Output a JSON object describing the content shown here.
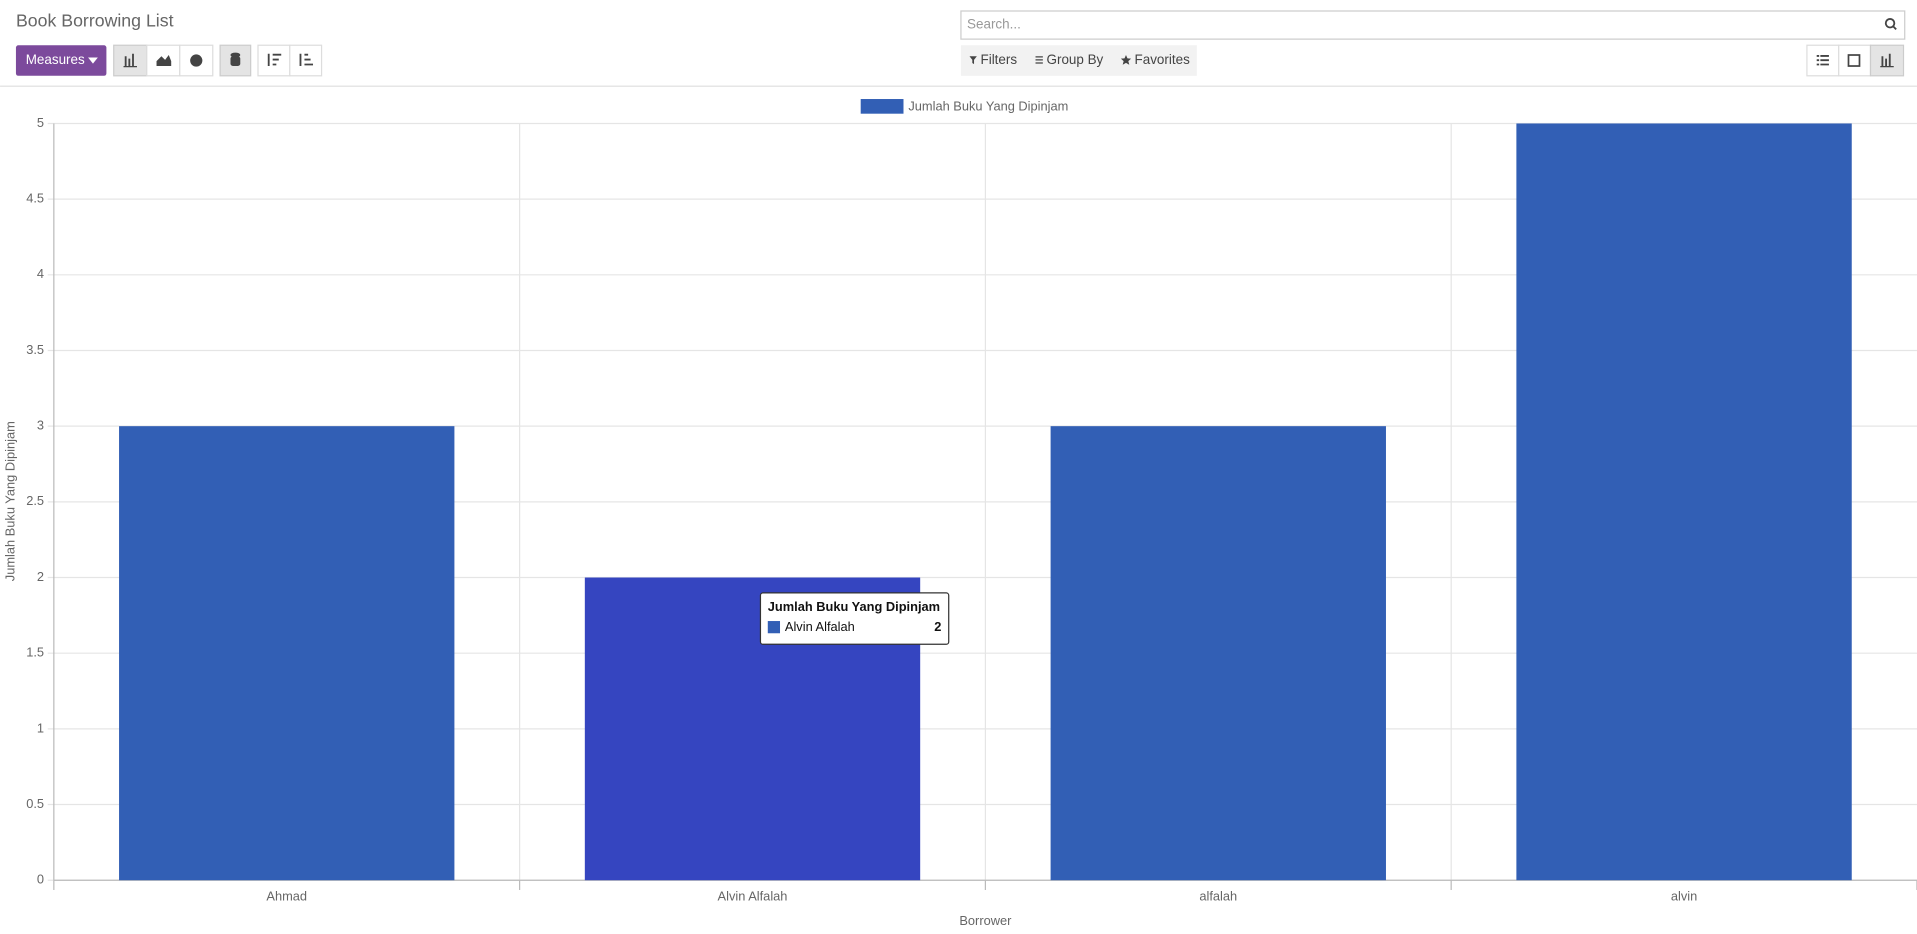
{
  "header": {
    "title": "Book Borrowing List",
    "measures": "Measures",
    "search_placeholder": "Search...",
    "filters": "Filters",
    "group_by": "Group By",
    "favorites": "Favorites"
  },
  "chart_data": {
    "type": "bar",
    "xlabel": "Borrower",
    "ylabel": "Jumlah Buku Yang Dipinjam",
    "categories": [
      "Ahmad",
      "Alvin Alfalah",
      "alfalah",
      "alvin"
    ],
    "series": [
      {
        "name": "Jumlah Buku Yang Dipinjam",
        "color": "#325fb5",
        "values": [
          3,
          2,
          3,
          5
        ]
      }
    ],
    "ylim": [
      0,
      5
    ],
    "yticks": [
      0,
      0.5,
      1,
      1.5,
      2,
      2.5,
      3,
      3.5,
      4,
      4.5,
      5
    ],
    "grid": true,
    "legend": "top"
  }
}
